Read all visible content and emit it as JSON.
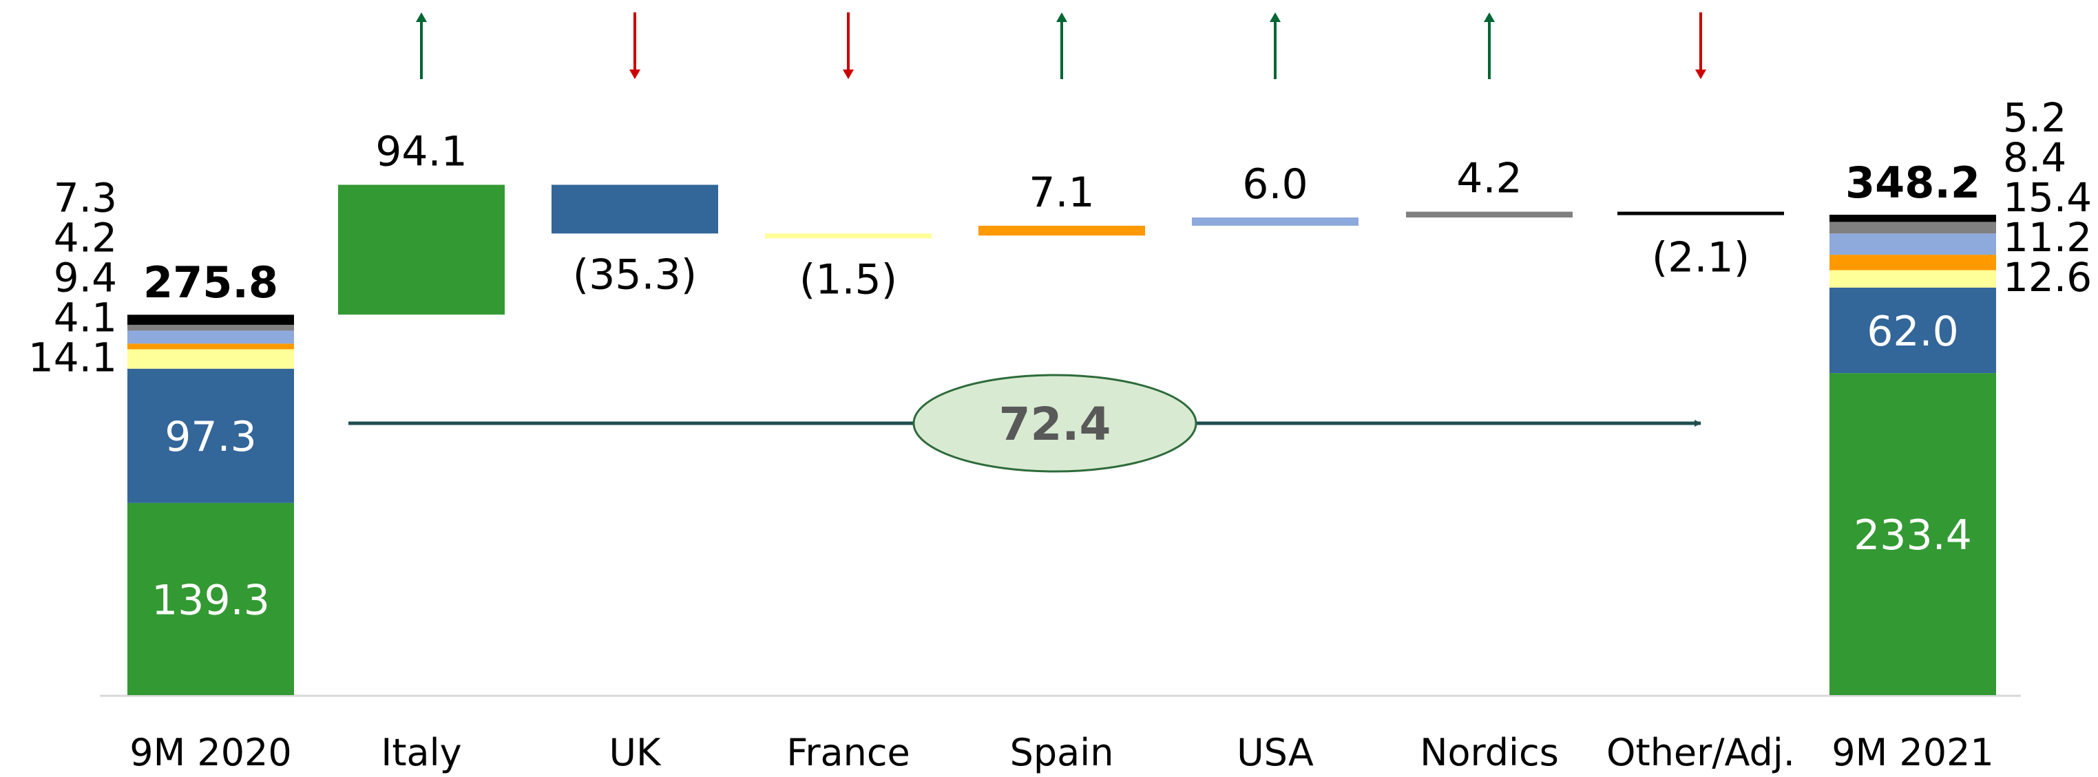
{
  "colors": {
    "italy": "#339933",
    "uk": "#336699",
    "france": "#ffff99",
    "spain": "#ff9900",
    "usa": "#8ea9db",
    "nordics": "#808080",
    "other": "#000000",
    "arrow_up": "#006633",
    "arrow_down": "#cc0000",
    "total_arrow": "#1f4e4e",
    "oval_fill": "#d9ead3",
    "oval_stroke": "#2e6b3a",
    "axis": "#d9d9d9"
  },
  "chart_data": {
    "type": "bar",
    "subtype": "waterfall",
    "categories": [
      "9M 2020",
      "Italy",
      "UK",
      "France",
      "Spain",
      "USA",
      "Nordics",
      "Other/Adj.",
      "9M 2021"
    ],
    "start": {
      "label": "9M 2020",
      "total": 275.8,
      "total_label": "275.8",
      "segments": [
        {
          "key": "italy",
          "value": 139.3,
          "label": "139.3"
        },
        {
          "key": "uk",
          "value": 97.3,
          "label": "97.3"
        },
        {
          "key": "france",
          "value": 14.1,
          "label": "14.1"
        },
        {
          "key": "spain",
          "value": 4.1,
          "label": "4.1"
        },
        {
          "key": "usa",
          "value": 9.4,
          "label": "9.4"
        },
        {
          "key": "nordics",
          "value": 4.2,
          "label": "4.2"
        },
        {
          "key": "other",
          "value": 7.3,
          "label": "7.3"
        }
      ]
    },
    "changes": [
      {
        "category": "Italy",
        "key": "italy",
        "value": 94.1,
        "label": "94.1",
        "direction": "up"
      },
      {
        "category": "UK",
        "key": "uk",
        "value": -35.3,
        "label": "(35.3)",
        "direction": "down"
      },
      {
        "category": "France",
        "key": "france",
        "value": -1.5,
        "label": "(1.5)",
        "direction": "down"
      },
      {
        "category": "Spain",
        "key": "spain",
        "value": 7.1,
        "label": "7.1",
        "direction": "up"
      },
      {
        "category": "USA",
        "key": "usa",
        "value": 6.0,
        "label": "6.0",
        "direction": "up"
      },
      {
        "category": "Nordics",
        "key": "nordics",
        "value": 4.2,
        "label": "4.2",
        "direction": "up"
      },
      {
        "category": "Other/Adj.",
        "key": "other",
        "value": -2.1,
        "label": "(2.1)",
        "direction": "down"
      }
    ],
    "end": {
      "label": "9M 2021",
      "total": 348.2,
      "total_label": "348.2",
      "segments": [
        {
          "key": "italy",
          "value": 233.4,
          "label": "233.4"
        },
        {
          "key": "uk",
          "value": 62.0,
          "label": "62.0"
        },
        {
          "key": "france",
          "value": 12.6,
          "label": "12.6"
        },
        {
          "key": "spain",
          "value": 11.2,
          "label": "11.2"
        },
        {
          "key": "usa",
          "value": 15.4,
          "label": "15.4"
        },
        {
          "key": "nordics",
          "value": 8.4,
          "label": "8.4"
        },
        {
          "key": "other",
          "value": 5.2,
          "label": "5.2"
        }
      ]
    },
    "net_change": {
      "value": 72.4,
      "label": "72.4"
    },
    "ylim": [
      0,
      348.2
    ],
    "grid": false,
    "legend": "none"
  }
}
